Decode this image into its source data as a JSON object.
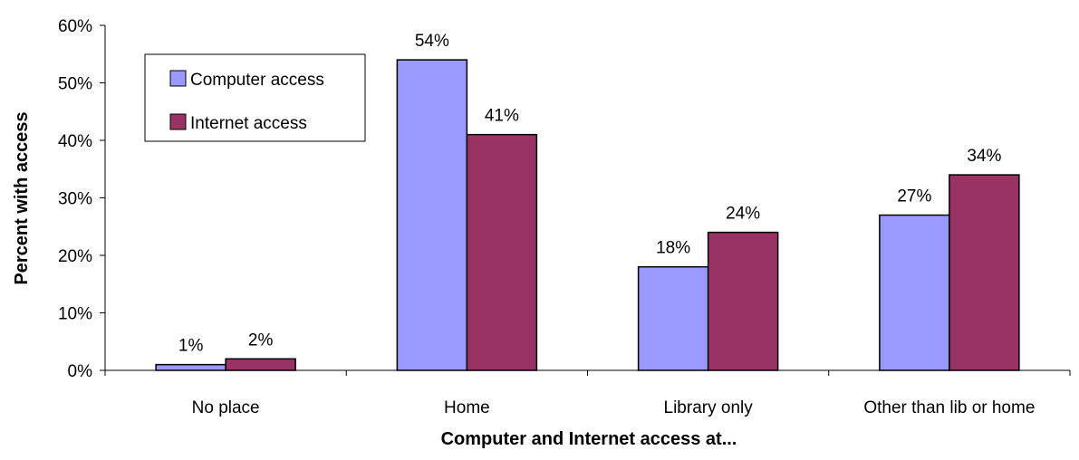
{
  "chart_data": {
    "type": "bar",
    "title": "",
    "xlabel": "Computer and Internet access at...",
    "ylabel": "Percent with access",
    "categories": [
      "No place",
      "Home",
      "Library only",
      "Other than lib or home"
    ],
    "series": [
      {
        "name": "Computer access",
        "values": [
          1,
          54,
          18,
          27
        ],
        "labels": [
          "1%",
          "54%",
          "18%",
          "27%"
        ],
        "color": "#9999ff"
      },
      {
        "name": "Internet access",
        "values": [
          2,
          41,
          24,
          34
        ],
        "labels": [
          "2%",
          "41%",
          "24%",
          "34%"
        ],
        "color": "#993366"
      }
    ],
    "ylim": [
      0,
      60
    ],
    "yticks": [
      0,
      10,
      20,
      30,
      40,
      50,
      60
    ],
    "ytick_labels": [
      "0%",
      "10%",
      "20%",
      "30%",
      "40%",
      "50%",
      "60%"
    ],
    "grid": false,
    "legend_position": "top-left"
  }
}
